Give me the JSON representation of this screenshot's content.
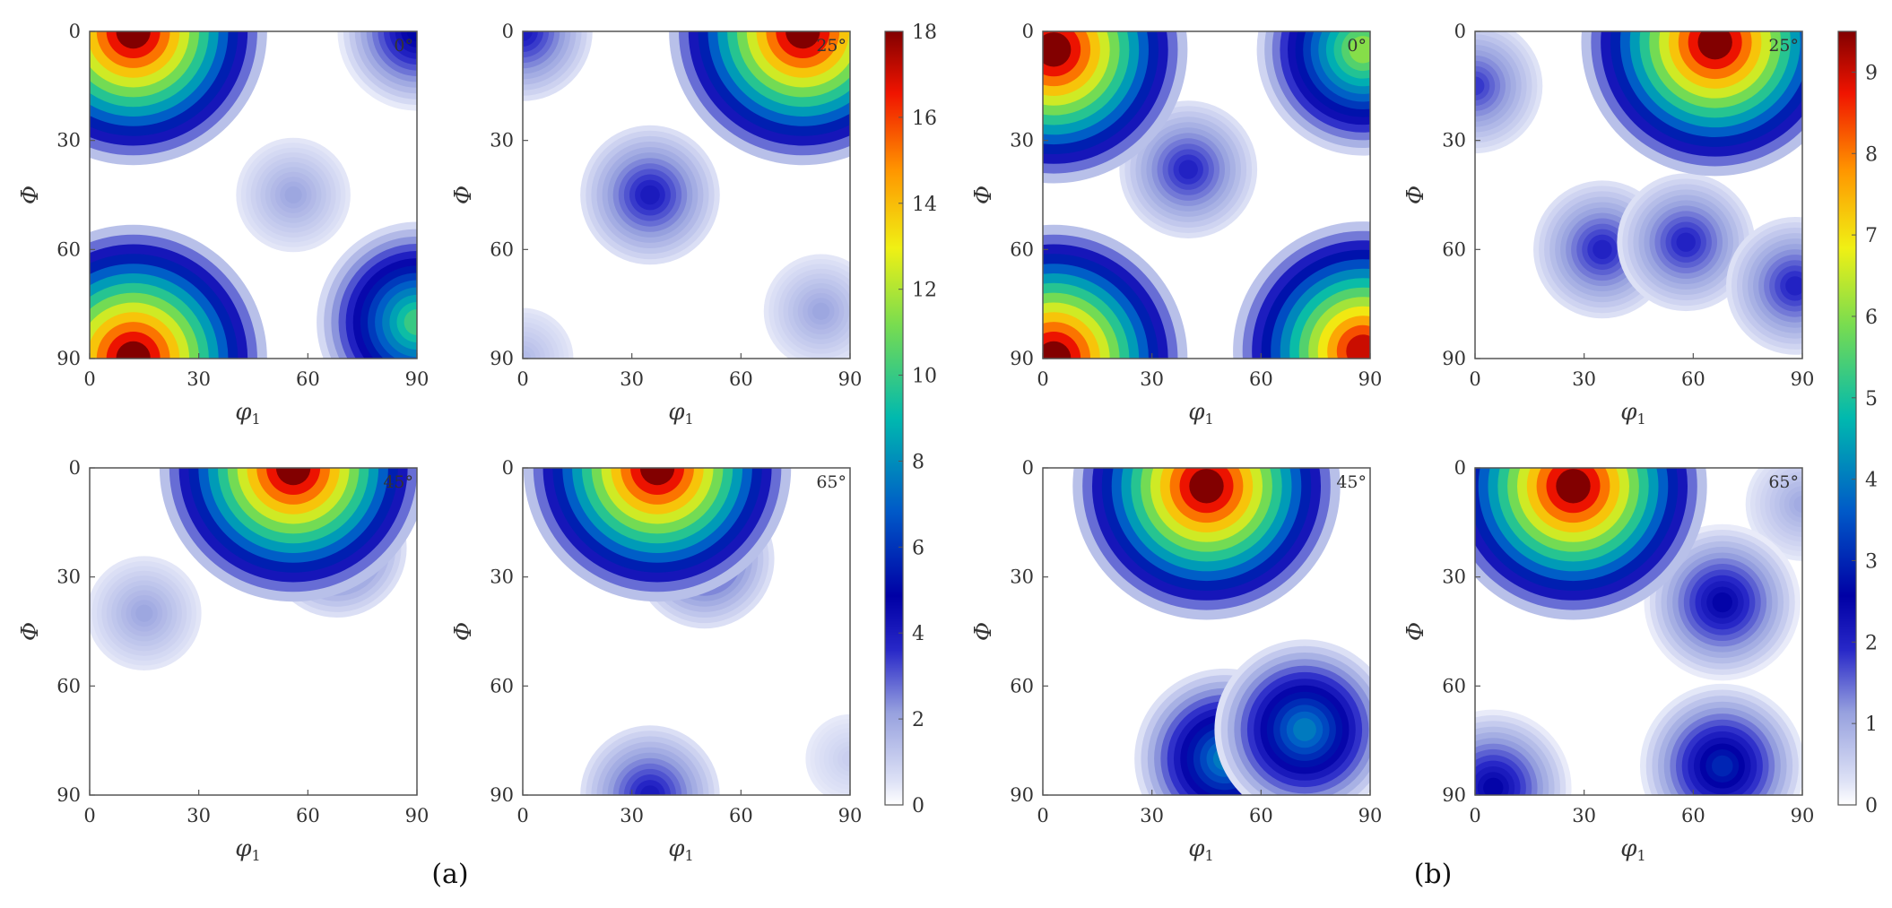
{
  "chart_data": {
    "type": "heatmap",
    "groups": [
      {
        "label": "(a)",
        "colorbar": {
          "min": 0,
          "max": 18,
          "ticks": [
            0,
            2,
            4,
            6,
            8,
            10,
            12,
            14,
            16,
            18
          ]
        },
        "panels": [
          {
            "angle": "0°",
            "xlabel": "φ1",
            "ylabel": "Φ",
            "xlim": [
              0,
              90
            ],
            "ylim": [
              0,
              90
            ],
            "xticks": [
              0,
              30,
              60,
              90
            ],
            "yticks": [
              0,
              30,
              60,
              90
            ],
            "peaks": [
              {
                "x": 12,
                "y": 0,
                "value": 18
              },
              {
                "x": 12,
                "y": 90,
                "value": 18
              },
              {
                "x": 90,
                "y": 80,
                "value": 10
              },
              {
                "x": 90,
                "y": 0,
                "value": 5
              },
              {
                "x": 56,
                "y": 45,
                "value": 2
              }
            ]
          },
          {
            "angle": "25°",
            "xlabel": "φ1",
            "ylabel": "Φ",
            "xlim": [
              0,
              90
            ],
            "ylim": [
              0,
              90
            ],
            "xticks": [
              0,
              30,
              60,
              90
            ],
            "yticks": [
              0,
              30,
              60,
              90
            ],
            "peaks": [
              {
                "x": 77,
                "y": 0,
                "value": 18
              },
              {
                "x": 0,
                "y": 0,
                "value": 4
              },
              {
                "x": 35,
                "y": 45,
                "value": 4
              },
              {
                "x": 82,
                "y": 77,
                "value": 2
              },
              {
                "x": 0,
                "y": 90,
                "value": 1.5
              }
            ]
          },
          {
            "angle": "45°",
            "xlabel": "φ1",
            "ylabel": "Φ",
            "xlim": [
              0,
              90
            ],
            "ylim": [
              0,
              90
            ],
            "xticks": [
              0,
              30,
              60,
              90
            ],
            "yticks": [
              0,
              30,
              60,
              90
            ],
            "peaks": [
              {
                "x": 56,
                "y": 0,
                "value": 18
              },
              {
                "x": 68,
                "y": 22,
                "value": 4
              },
              {
                "x": 15,
                "y": 40,
                "value": 2
              }
            ]
          },
          {
            "angle": "65°",
            "xlabel": "φ1",
            "ylabel": "Φ",
            "xlim": [
              0,
              90
            ],
            "ylim": [
              0,
              90
            ],
            "xticks": [
              0,
              30,
              60,
              90
            ],
            "yticks": [
              0,
              30,
              60,
              90
            ],
            "peaks": [
              {
                "x": 37,
                "y": 0,
                "value": 18
              },
              {
                "x": 50,
                "y": 25,
                "value": 4
              },
              {
                "x": 35,
                "y": 90,
                "value": 4
              },
              {
                "x": 90,
                "y": 80,
                "value": 1
              }
            ]
          }
        ]
      },
      {
        "label": "(b)",
        "colorbar": {
          "min": 0,
          "max": 9.5,
          "ticks": [
            0,
            1,
            2,
            3,
            4,
            5,
            6,
            7,
            8,
            9
          ]
        },
        "panels": [
          {
            "angle": "0°",
            "xlabel": "φ1",
            "ylabel": "Φ",
            "xlim": [
              0,
              90
            ],
            "ylim": [
              0,
              90
            ],
            "xticks": [
              0,
              30,
              60,
              90
            ],
            "yticks": [
              0,
              30,
              60,
              90
            ],
            "peaks": [
              {
                "x": 3,
                "y": 5,
                "value": 9.5
              },
              {
                "x": 88,
                "y": 5,
                "value": 6
              },
              {
                "x": 3,
                "y": 90,
                "value": 9.5
              },
              {
                "x": 88,
                "y": 88,
                "value": 9
              },
              {
                "x": 40,
                "y": 38,
                "value": 2
              }
            ]
          },
          {
            "angle": "25°",
            "xlabel": "φ1",
            "ylabel": "Φ",
            "xlim": [
              0,
              90
            ],
            "ylim": [
              0,
              90
            ],
            "xticks": [
              0,
              30,
              60,
              90
            ],
            "yticks": [
              0,
              30,
              60,
              90
            ],
            "peaks": [
              {
                "x": 66,
                "y": 3,
                "value": 9.5
              },
              {
                "x": 35,
                "y": 60,
                "value": 2
              },
              {
                "x": 58,
                "y": 58,
                "value": 2
              },
              {
                "x": 88,
                "y": 70,
                "value": 2
              },
              {
                "x": 0,
                "y": 15,
                "value": 1.8
              }
            ]
          },
          {
            "angle": "45°",
            "xlabel": "φ1",
            "ylabel": "Φ",
            "xlim": [
              0,
              90
            ],
            "ylim": [
              0,
              90
            ],
            "xticks": [
              0,
              30,
              60,
              90
            ],
            "yticks": [
              0,
              30,
              60,
              90
            ],
            "peaks": [
              {
                "x": 45,
                "y": 5,
                "value": 9.5
              },
              {
                "x": 50,
                "y": 80,
                "value": 4
              },
              {
                "x": 72,
                "y": 72,
                "value": 4
              }
            ]
          },
          {
            "angle": "65°",
            "xlabel": "φ1",
            "ylabel": "Φ",
            "xlim": [
              0,
              90
            ],
            "ylim": [
              0,
              90
            ],
            "xticks": [
              0,
              30,
              60,
              90
            ],
            "yticks": [
              0,
              30,
              60,
              90
            ],
            "peaks": [
              {
                "x": 27,
                "y": 5,
                "value": 9.5
              },
              {
                "x": 68,
                "y": 37,
                "value": 2.5
              },
              {
                "x": 68,
                "y": 82,
                "value": 3
              },
              {
                "x": 5,
                "y": 88,
                "value": 2.5
              },
              {
                "x": 90,
                "y": 10,
                "value": 1
              }
            ]
          }
        ]
      }
    ]
  }
}
